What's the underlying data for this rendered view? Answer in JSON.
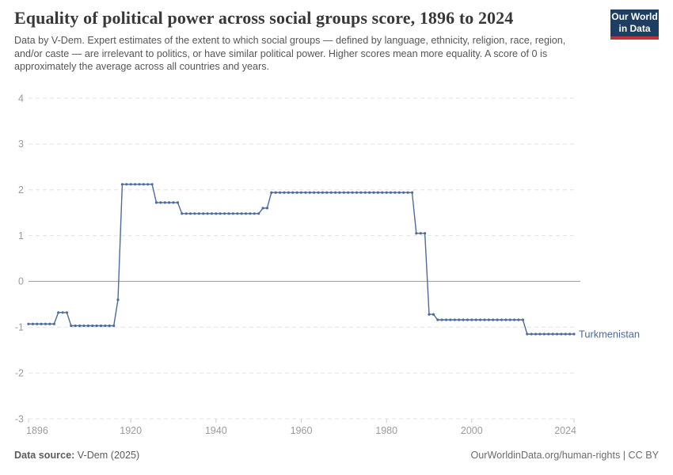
{
  "header": {
    "title": "Equality of political power across social groups score, 1896 to 2024",
    "subtitle": "Data by V-Dem. Expert estimates of the extent to which social groups — defined by language, ethnicity, religion, race, region, and/or caste — are irrelevant to politics, or have similar political power. Higher scores mean more equality. A score of 0 is approximately the average across all countries and years.",
    "logo": {
      "line1": "Our World",
      "line2": "in Data"
    }
  },
  "chart_data": {
    "type": "line",
    "title": "Equality of political power across social groups score, 1896 to 2024",
    "xlabel": "",
    "ylabel": "",
    "x_range": [
      1896,
      2024
    ],
    "y_range": [
      -3,
      4
    ],
    "x_ticks": [
      1896,
      1920,
      1940,
      1960,
      1980,
      2000,
      2024
    ],
    "y_ticks": [
      4,
      3,
      2,
      1,
      0,
      -1,
      -2,
      -3
    ],
    "grid": "horizontal dashed gridlines, solid line at zero",
    "legend_position": "label at end of line",
    "marker": "dot every year",
    "series": [
      {
        "name": "Turkmenistan",
        "color": "#4c6a9c",
        "segments": [
          {
            "from": 1896,
            "to": 1902,
            "value": -0.93
          },
          {
            "from": 1903,
            "to": 1905,
            "value": -0.68
          },
          {
            "from": 1906,
            "to": 1916,
            "value": -0.97
          },
          {
            "from": 1917,
            "to": 1917,
            "value": -0.4
          },
          {
            "from": 1918,
            "to": 1925,
            "value": 2.12
          },
          {
            "from": 1926,
            "to": 1931,
            "value": 1.72
          },
          {
            "from": 1932,
            "to": 1950,
            "value": 1.48
          },
          {
            "from": 1951,
            "to": 1952,
            "value": 1.6
          },
          {
            "from": 1953,
            "to": 1986,
            "value": 1.94
          },
          {
            "from": 1987,
            "to": 1989,
            "value": 1.05
          },
          {
            "from": 1990,
            "to": 1991,
            "value": -0.72
          },
          {
            "from": 1992,
            "to": 2012,
            "value": -0.84
          },
          {
            "from": 2013,
            "to": 2024,
            "value": -1.15
          }
        ]
      }
    ]
  },
  "footer": {
    "source_label": "Data source:",
    "source_value": " V-Dem (2025)",
    "credit": "OurWorldinData.org/human-rights | CC BY"
  },
  "colors": {
    "series_line": "#4c6a9c",
    "gridline": "#e2e2e2",
    "zero_line": "#9a9a9a",
    "tick_mark": "#cfcfcf",
    "axis_text": "#9b9b9b",
    "logo_background": "#1d3d63",
    "logo_bar": "#c5303e",
    "title_text": "#383838",
    "subtitle_text": "#565656",
    "footer_text": "#5b5b5b"
  }
}
